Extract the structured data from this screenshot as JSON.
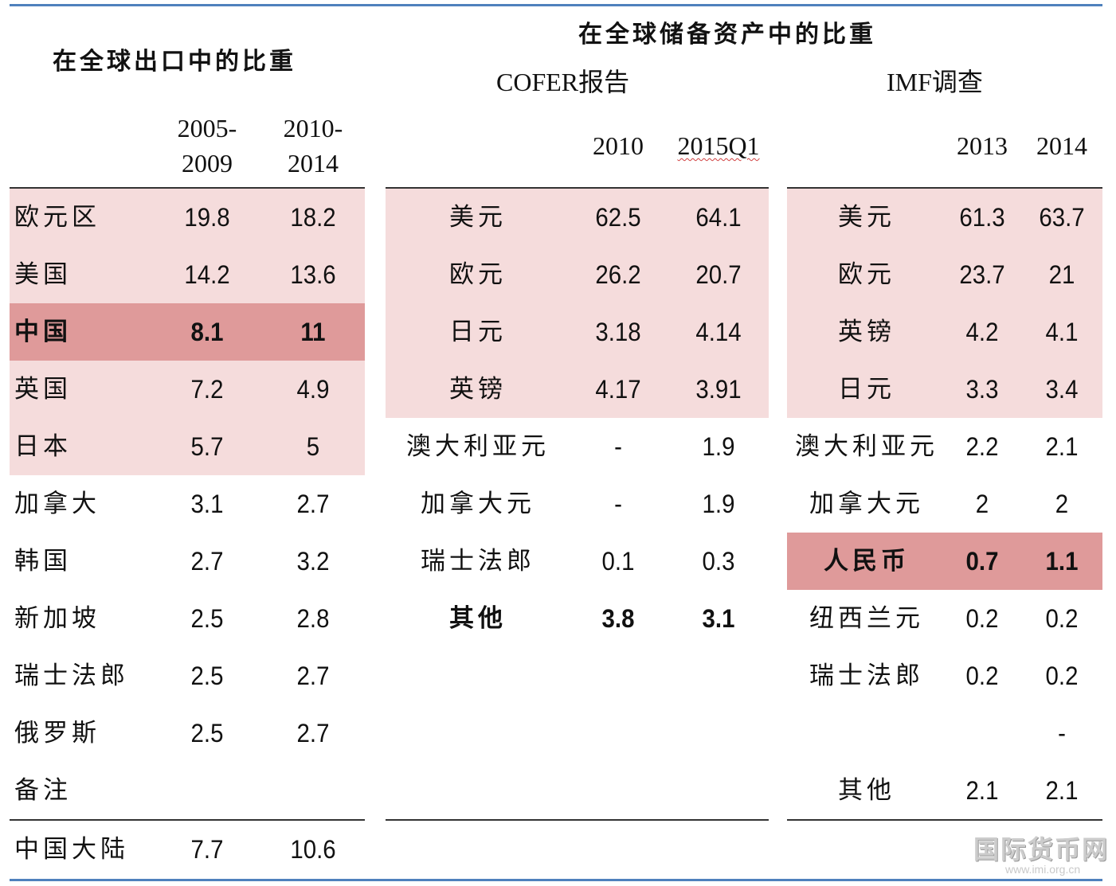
{
  "left": {
    "title": "在全球出口中的比重",
    "years": [
      [
        "2005-",
        "2009"
      ],
      [
        "2010-",
        "2014"
      ]
    ],
    "rows": [
      {
        "label": "欧元区",
        "v1": "19.8",
        "v2": "18.2",
        "style": "pink"
      },
      {
        "label": "美国",
        "v1": "14.2",
        "v2": "13.6",
        "style": "pink"
      },
      {
        "label": "中国",
        "v1": "8.1",
        "v2": "11",
        "style": "hl"
      },
      {
        "label": "英国",
        "v1": "7.2",
        "v2": "4.9",
        "style": "pink"
      },
      {
        "label": "日本",
        "v1": "5.7",
        "v2": "5",
        "style": "pink"
      },
      {
        "label": "加拿大",
        "v1": "3.1",
        "v2": "2.7",
        "style": ""
      },
      {
        "label": "韩国",
        "v1": "2.7",
        "v2": "3.2",
        "style": ""
      },
      {
        "label": "新加坡",
        "v1": "2.5",
        "v2": "2.8",
        "style": ""
      },
      {
        "label": "瑞士法郎",
        "v1": "2.5",
        "v2": "2.7",
        "style": ""
      },
      {
        "label": "俄罗斯",
        "v1": "2.5",
        "v2": "2.7",
        "style": ""
      },
      {
        "label": "备注",
        "v1": "",
        "v2": "",
        "style": ""
      }
    ],
    "footer": {
      "label": "中国大陆",
      "v1": "7.7",
      "v2": "10.6"
    }
  },
  "reserve_title": "在全球储备资产中的比重",
  "cofer": {
    "title": "COFER报告",
    "years": [
      "2010",
      "2015Q1"
    ],
    "rows": [
      {
        "label": "美元",
        "v1": "62.5",
        "v2": "64.1",
        "style": "pink"
      },
      {
        "label": "欧元",
        "v1": "26.2",
        "v2": "20.7",
        "style": "pink"
      },
      {
        "label": "日元",
        "v1": "3.18",
        "v2": "4.14",
        "style": "pink"
      },
      {
        "label": "英镑",
        "v1": "4.17",
        "v2": "3.91",
        "style": "pink"
      },
      {
        "label": "澳大利亚元",
        "v1": "-",
        "v2": "1.9",
        "style": ""
      },
      {
        "label": "加拿大元",
        "v1": "-",
        "v2": "1.9",
        "style": ""
      },
      {
        "label": "瑞士法郎",
        "v1": "0.1",
        "v2": "0.3",
        "style": ""
      },
      {
        "label": "其他",
        "v1": "3.8",
        "v2": "3.1",
        "style": "bold"
      }
    ]
  },
  "imf": {
    "title": "IMF调查",
    "years": [
      "2013",
      "2014"
    ],
    "rows": [
      {
        "label": "美元",
        "v1": "61.3",
        "v2": "63.7",
        "style": "pink"
      },
      {
        "label": "欧元",
        "v1": "23.7",
        "v2": "21",
        "style": "pink"
      },
      {
        "label": "英镑",
        "v1": "4.2",
        "v2": "4.1",
        "style": "pink"
      },
      {
        "label": "日元",
        "v1": "3.3",
        "v2": "3.4",
        "style": "pink"
      },
      {
        "label": "澳大利亚元",
        "v1": "2.2",
        "v2": "2.1",
        "style": ""
      },
      {
        "label": "加拿大元",
        "v1": "2",
        "v2": "2",
        "style": ""
      },
      {
        "label": "人民币",
        "v1": "0.7",
        "v2": "1.1",
        "style": "hl"
      },
      {
        "label": "纽西兰元",
        "v1": "0.2",
        "v2": "0.2",
        "style": ""
      },
      {
        "label": "瑞士法郎",
        "v1": "0.2",
        "v2": "0.2",
        "style": ""
      },
      {
        "label": "",
        "v1": "",
        "v2": "-",
        "style": ""
      },
      {
        "label": "其他",
        "v1": "2.1",
        "v2": "2.1",
        "style": ""
      }
    ]
  },
  "watermark": {
    "name": "国际货币网",
    "url": "www.imi.org.cn"
  },
  "colors": {
    "accent_rule": "#4f81bd",
    "row_pink": "#f5dcdc",
    "row_highlight": "#df9a9a"
  }
}
